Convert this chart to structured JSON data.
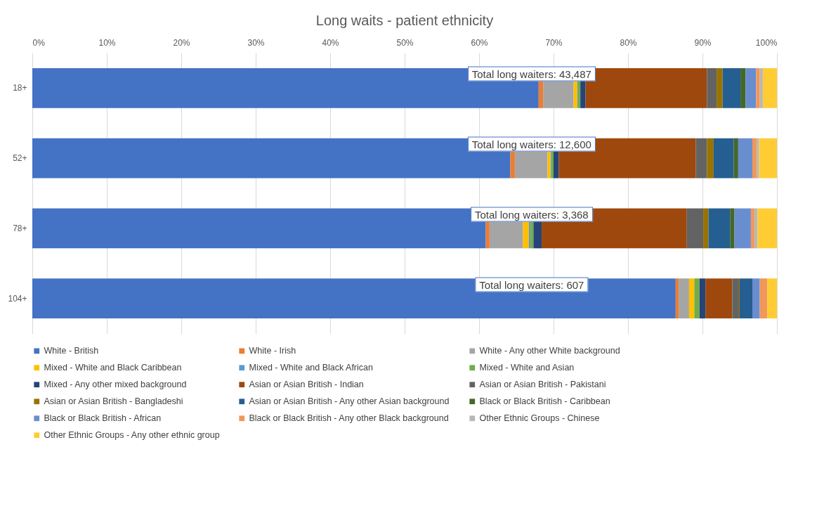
{
  "chart_data": {
    "type": "bar",
    "orientation": "horizontal",
    "stacked": true,
    "title": "Long waits - patient ethnicity",
    "categories": [
      "18+",
      "52+",
      "78+",
      "104+"
    ],
    "xlim": [
      0,
      100
    ],
    "xticks": [
      {
        "value": 0,
        "label": "0%"
      },
      {
        "value": 10,
        "label": "10%"
      },
      {
        "value": 20,
        "label": "20%"
      },
      {
        "value": 30,
        "label": "30%"
      },
      {
        "value": 40,
        "label": "40%"
      },
      {
        "value": 50,
        "label": "50%"
      },
      {
        "value": 60,
        "label": "60%"
      },
      {
        "value": 70,
        "label": "70%"
      },
      {
        "value": 80,
        "label": "80%"
      },
      {
        "value": 90,
        "label": "90%"
      },
      {
        "value": 100,
        "label": "100%"
      }
    ],
    "grid": "x",
    "legend": "bottom",
    "series": [
      {
        "name": "White - British",
        "color": "#4472c4",
        "values": [
          68.0,
          64.2,
          60.9,
          86.4
        ]
      },
      {
        "name": "White - Irish",
        "color": "#ed7d31",
        "values": [
          0.6,
          0.6,
          0.5,
          0.4
        ]
      },
      {
        "name": "White - Any other White background",
        "color": "#a5a5a5",
        "values": [
          4.1,
          4.4,
          4.5,
          1.4
        ]
      },
      {
        "name": "Mixed - White and Black Caribbean",
        "color": "#ffc000",
        "values": [
          0.5,
          0.4,
          0.8,
          0.7
        ]
      },
      {
        "name": "Mixed - White and Black African",
        "color": "#5b9bd5",
        "values": [
          0.1,
          0.1,
          0.2,
          0
        ]
      },
      {
        "name": "Mixed - White and Asian",
        "color": "#70ad47",
        "values": [
          0.3,
          0.3,
          0.4,
          0.7
        ]
      },
      {
        "name": "Mixed - Any other mixed background",
        "color": "#264478",
        "values": [
          0.7,
          0.7,
          1.1,
          0.8
        ]
      },
      {
        "name": "Asian or Asian British - Indian",
        "color": "#9e480e",
        "values": [
          16.3,
          18.4,
          19.5,
          3.6
        ]
      },
      {
        "name": "Asian or Asian British - Pakistani",
        "color": "#636363",
        "values": [
          1.3,
          1.5,
          2.2,
          0.9
        ]
      },
      {
        "name": "Asian or Asian British - Bangladeshi",
        "color": "#997300",
        "values": [
          0.8,
          0.9,
          0.7,
          0.1
        ]
      },
      {
        "name": "Asian or Asian British - Any other Asian background",
        "color": "#255e91",
        "values": [
          2.4,
          2.7,
          2.9,
          1.7
        ]
      },
      {
        "name": "Black or Black British - Caribbean",
        "color": "#43682b",
        "values": [
          0.7,
          0.6,
          0.6,
          0
        ]
      },
      {
        "name": "Black or Black British - African",
        "color": "#698ed0",
        "values": [
          1.4,
          1.9,
          2.2,
          1.0
        ]
      },
      {
        "name": "Black or Black British - Any other Black background",
        "color": "#f1975a",
        "values": [
          0.5,
          0.6,
          0.5,
          1.0
        ]
      },
      {
        "name": "Other Ethnic Groups - Chinese",
        "color": "#b7b7b7",
        "values": [
          0.4,
          0.3,
          0.4,
          0
        ]
      },
      {
        "name": "Other Ethnic Groups - Any other ethnic group",
        "color": "#ffcd33",
        "values": [
          1.9,
          2.4,
          2.6,
          1.3
        ]
      }
    ],
    "annotations": [
      "Total long waiters: 43,487",
      "Total long waiters: 12,600",
      "Total long waiters: 3,368",
      "Total long waiters: 607"
    ]
  }
}
